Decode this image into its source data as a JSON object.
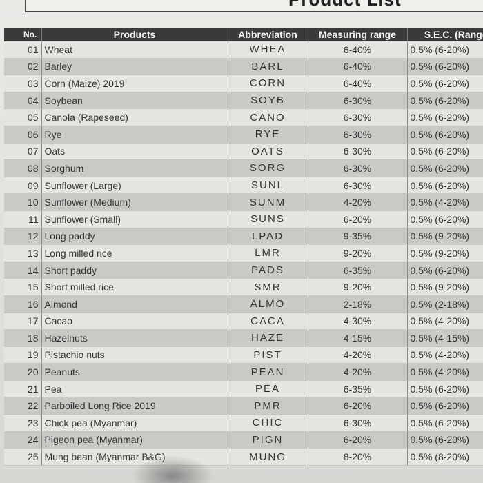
{
  "header": {
    "title": "Product List"
  },
  "table": {
    "columns": [
      "No.",
      "Products",
      "Abbreviation",
      "Measuring range",
      "S.E.C. (Range)"
    ],
    "rows": [
      {
        "no": "01",
        "product": "Wheat",
        "abbr": "WHEA",
        "range": "6-40%",
        "sec": "0.5% (6-20%)"
      },
      {
        "no": "02",
        "product": "Barley",
        "abbr": "BARL",
        "range": "6-40%",
        "sec": "0.5% (6-20%)"
      },
      {
        "no": "03",
        "product": "Corn (Maize) 2019",
        "abbr": "CORN",
        "range": "6-40%",
        "sec": "0.5% (6-20%)"
      },
      {
        "no": "04",
        "product": "Soybean",
        "abbr": "SOYB",
        "range": "6-30%",
        "sec": "0.5% (6-20%)"
      },
      {
        "no": "05",
        "product": "Canola (Rapeseed)",
        "abbr": "CANO",
        "range": "6-30%",
        "sec": "0.5% (6-20%)"
      },
      {
        "no": "06",
        "product": "Rye",
        "abbr": "RYE",
        "range": "6-30%",
        "sec": "0.5% (6-20%)"
      },
      {
        "no": "07",
        "product": "Oats",
        "abbr": "OATS",
        "range": "6-30%",
        "sec": "0.5% (6-20%)"
      },
      {
        "no": "08",
        "product": "Sorghum",
        "abbr": "SORG",
        "range": "6-30%",
        "sec": "0.5% (6-20%)"
      },
      {
        "no": "09",
        "product": "Sunflower (Large)",
        "abbr": "SUNL",
        "range": "6-30%",
        "sec": "0.5% (6-20%)"
      },
      {
        "no": "10",
        "product": "Sunflower (Medium)",
        "abbr": "SUNM",
        "range": "4-20%",
        "sec": "0.5% (4-20%)"
      },
      {
        "no": "11",
        "product": "Sunflower (Small)",
        "abbr": "SUNS",
        "range": "6-20%",
        "sec": "0.5% (6-20%)"
      },
      {
        "no": "12",
        "product": "Long paddy",
        "abbr": "LPAD",
        "range": "9-35%",
        "sec": "0.5% (9-20%)"
      },
      {
        "no": "13",
        "product": "Long milled rice",
        "abbr": "LMR",
        "range": "9-20%",
        "sec": "0.5% (9-20%)"
      },
      {
        "no": "14",
        "product": "Short paddy",
        "abbr": "PADS",
        "range": "6-35%",
        "sec": "0.5% (6-20%)"
      },
      {
        "no": "15",
        "product": "Short milled rice",
        "abbr": "SMR",
        "range": "9-20%",
        "sec": "0.5% (9-20%)"
      },
      {
        "no": "16",
        "product": "Almond",
        "abbr": "ALMO",
        "range": "2-18%",
        "sec": "0.5% (2-18%)"
      },
      {
        "no": "17",
        "product": "Cacao",
        "abbr": "CACA",
        "range": "4-30%",
        "sec": "0.5% (4-20%)"
      },
      {
        "no": "18",
        "product": "Hazelnuts",
        "abbr": "HAZE",
        "range": "4-15%",
        "sec": "0.5% (4-15%)"
      },
      {
        "no": "19",
        "product": "Pistachio nuts",
        "abbr": "PIST",
        "range": "4-20%",
        "sec": "0.5% (4-20%)"
      },
      {
        "no": "20",
        "product": "Peanuts",
        "abbr": "PEAN",
        "range": "4-20%",
        "sec": "0.5% (4-20%)"
      },
      {
        "no": "21",
        "product": "Pea",
        "abbr": "PEA",
        "range": "6-35%",
        "sec": "0.5% (6-20%)"
      },
      {
        "no": "22",
        "product": "Parboiled Long Rice 2019",
        "abbr": "PMR",
        "range": "6-20%",
        "sec": "0.5% (6-20%)"
      },
      {
        "no": "23",
        "product": "Chick pea (Myanmar)",
        "abbr": "CHIC",
        "range": "6-30%",
        "sec": "0.5% (6-20%)"
      },
      {
        "no": "24",
        "product": "Pigeon pea (Myanmar)",
        "abbr": "PIGN",
        "range": "6-20%",
        "sec": "0.5% (6-20%)"
      },
      {
        "no": "25",
        "product": "Mung bean (Myanmar B&G)",
        "abbr": "MUNG",
        "range": "8-20%",
        "sec": "0.5% (8-20%)"
      }
    ]
  }
}
